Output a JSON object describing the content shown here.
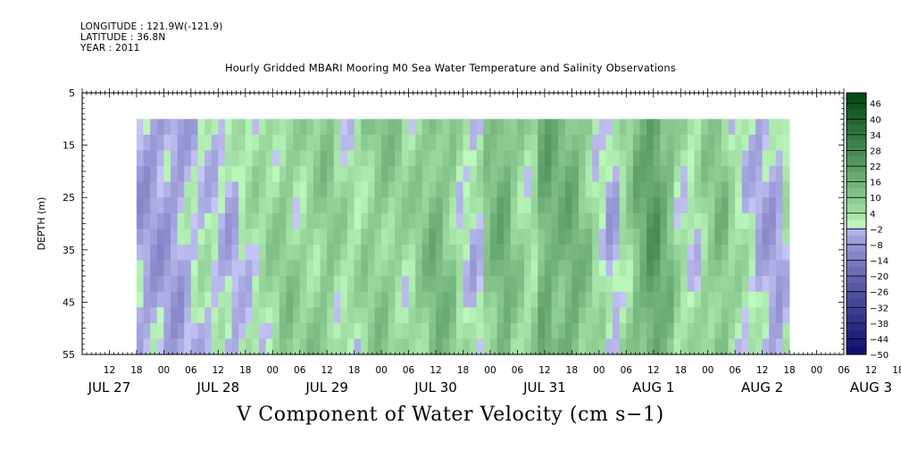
{
  "header": {
    "longitude": "LONGITUDE : 121.9W(-121.9)",
    "latitude": "LATITUDE : 36.8N",
    "year": "YEAR : 2011"
  },
  "chart_data": {
    "type": "heatmap",
    "title": "Hourly Gridded MBARI Mooring M0 Sea Water Temperature and Salinity Observations",
    "variable_label": "V Component of Water Velocity (cm s−1)",
    "ylabel": "DEPTH (m)",
    "y_ticks": [
      "5",
      "15",
      "25",
      "35",
      "45",
      "55"
    ],
    "ylim": [
      5,
      55
    ],
    "y_reversed": true,
    "data_depth_range": [
      10,
      55
    ],
    "hour_ticks": [
      "12",
      "18",
      "00",
      "06",
      "12",
      "18",
      "00",
      "06",
      "12",
      "18",
      "00",
      "06",
      "12",
      "18",
      "00",
      "06",
      "12",
      "18",
      "00",
      "06",
      "12",
      "18",
      "00",
      "06",
      "12",
      "18",
      "00",
      "06",
      "12",
      "18",
      "00",
      "06"
    ],
    "date_labels": [
      "JUL 27",
      "JUL 28",
      "JUL 29",
      "JUL 30",
      "JUL 31",
      "AUG  1",
      "AUG  2",
      "AUG  3"
    ],
    "colorbar": {
      "labels": [
        "46",
        "40",
        "34",
        "28",
        "22",
        "16",
        "10",
        "4",
        "−2",
        "−8",
        "−14",
        "−20",
        "−26",
        "−32",
        "−38",
        "−44",
        "−50"
      ],
      "min": -50,
      "max": 50,
      "step": 3
    },
    "data_time_range_hours_from_jul27_00": [
      18,
      162
    ],
    "time_profile": [
      {
        "t": 18,
        "v": -4
      },
      {
        "t": 21,
        "v": -5
      },
      {
        "t": 24,
        "v": -5
      },
      {
        "t": 27,
        "v": -5
      },
      {
        "t": 30,
        "v": -1
      },
      {
        "t": 33,
        "v": 1
      },
      {
        "t": 36,
        "v": 0
      },
      {
        "t": 39,
        "v": -2
      },
      {
        "t": 42,
        "v": 2
      },
      {
        "t": 45,
        "v": 4
      },
      {
        "t": 48,
        "v": 6
      },
      {
        "t": 51,
        "v": 9
      },
      {
        "t": 54,
        "v": 6
      },
      {
        "t": 57,
        "v": 7
      },
      {
        "t": 60,
        "v": 10
      },
      {
        "t": 63,
        "v": 5
      },
      {
        "t": 66,
        "v": 3
      },
      {
        "t": 69,
        "v": 8
      },
      {
        "t": 72,
        "v": 10
      },
      {
        "t": 75,
        "v": 8
      },
      {
        "t": 78,
        "v": 5
      },
      {
        "t": 81,
        "v": 9
      },
      {
        "t": 84,
        "v": 14
      },
      {
        "t": 87,
        "v": 10
      },
      {
        "t": 90,
        "v": 2
      },
      {
        "t": 93,
        "v": -1
      },
      {
        "t": 96,
        "v": 12
      },
      {
        "t": 99,
        "v": 16
      },
      {
        "t": 102,
        "v": 8
      },
      {
        "t": 105,
        "v": 4
      },
      {
        "t": 108,
        "v": 18
      },
      {
        "t": 111,
        "v": 14
      },
      {
        "t": 114,
        "v": 16
      },
      {
        "t": 117,
        "v": 10
      },
      {
        "t": 120,
        "v": 3
      },
      {
        "t": 123,
        "v": -3
      },
      {
        "t": 126,
        "v": 6
      },
      {
        "t": 129,
        "v": 15
      },
      {
        "t": 132,
        "v": 22
      },
      {
        "t": 135,
        "v": 14
      },
      {
        "t": 138,
        "v": 4
      },
      {
        "t": 141,
        "v": 2
      },
      {
        "t": 144,
        "v": 8
      },
      {
        "t": 147,
        "v": 12
      },
      {
        "t": 150,
        "v": 4
      },
      {
        "t": 153,
        "v": 1
      },
      {
        "t": 156,
        "v": -3
      },
      {
        "t": 159,
        "v": -4
      },
      {
        "t": 162,
        "v": 3
      }
    ]
  }
}
